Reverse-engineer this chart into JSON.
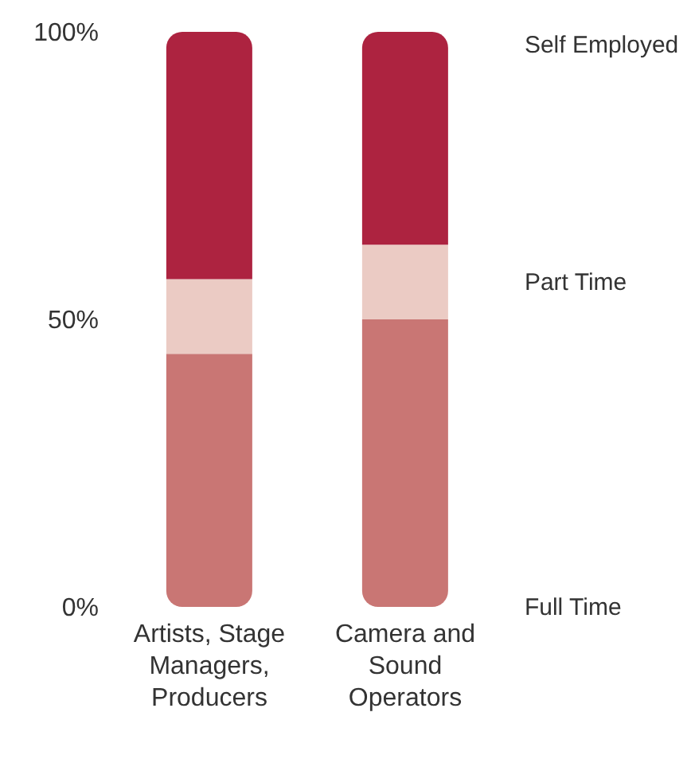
{
  "chart_data": {
    "type": "bar",
    "stacked": true,
    "categories": [
      "Artists, Stage Managers, Producers",
      "Camera and Sound Operators"
    ],
    "series": [
      {
        "name": "Full Time",
        "color": "#c97674",
        "values": [
          44,
          50
        ]
      },
      {
        "name": "Part Time",
        "color": "#ebcbc4",
        "values": [
          13,
          13
        ]
      },
      {
        "name": "Self Employed",
        "color": "#ad2340",
        "values": [
          43,
          37
        ]
      }
    ],
    "ylim": [
      0,
      100
    ],
    "yticks": [
      {
        "value": 0,
        "label": "0%"
      },
      {
        "value": 50,
        "label": "50%"
      },
      {
        "value": 100,
        "label": "100%"
      }
    ],
    "grid": false
  }
}
